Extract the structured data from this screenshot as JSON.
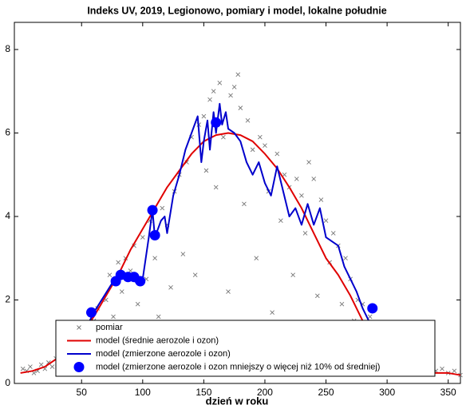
{
  "chart_data": {
    "type": "line",
    "title": "Indeks UV, 2019, Legionowo, pomiary i model, lokalne południe",
    "xlabel": "dzień w roku",
    "xlim": [
      -5,
      360
    ],
    "ylim": [
      0,
      8.65
    ],
    "xticks": [
      50,
      100,
      150,
      200,
      250,
      300,
      350
    ],
    "yticks": [
      0,
      2,
      4,
      6,
      8
    ],
    "legend": "lower center",
    "series": [
      {
        "name": "pomiar",
        "type": "scatter",
        "marker": "x",
        "color": "#777777",
        "x": [
          2,
          5,
          8,
          11,
          14,
          17,
          20,
          23,
          26,
          29,
          32,
          35,
          38,
          41,
          44,
          47,
          50,
          53,
          56,
          60,
          63,
          66,
          70,
          73,
          76,
          80,
          83,
          86,
          90,
          93,
          96,
          100,
          103,
          106,
          110,
          113,
          116,
          120,
          123,
          126,
          130,
          133,
          136,
          140,
          143,
          146,
          150,
          152,
          155,
          158,
          160,
          163,
          166,
          170,
          172,
          175,
          178,
          180,
          183,
          186,
          190,
          193,
          196,
          200,
          203,
          206,
          210,
          213,
          216,
          220,
          223,
          226,
          230,
          233,
          236,
          240,
          243,
          246,
          250,
          253,
          256,
          260,
          263,
          266,
          270,
          273,
          276,
          280,
          283,
          286,
          290,
          295,
          300,
          305,
          310,
          315,
          320,
          325,
          330,
          335,
          340,
          345,
          350,
          355,
          360
        ],
        "values": [
          0.35,
          0.3,
          0.4,
          0.25,
          0.3,
          0.45,
          0.35,
          0.5,
          0.4,
          0.6,
          0.55,
          0.7,
          0.5,
          0.9,
          0.8,
          1.1,
          0.7,
          1.3,
          1.0,
          1.5,
          1.8,
          1.2,
          2.0,
          2.6,
          1.6,
          2.9,
          2.2,
          3.0,
          2.7,
          3.3,
          1.9,
          3.5,
          2.5,
          3.9,
          3.0,
          1.6,
          4.2,
          3.8,
          2.3,
          4.6,
          5.0,
          3.1,
          5.3,
          5.9,
          2.6,
          6.2,
          6.4,
          5.1,
          6.8,
          7.0,
          4.7,
          7.2,
          5.9,
          2.2,
          6.9,
          7.1,
          7.4,
          6.6,
          4.3,
          6.3,
          5.6,
          3.0,
          5.9,
          5.7,
          4.6,
          1.7,
          5.5,
          3.9,
          5.0,
          4.7,
          2.6,
          4.9,
          4.5,
          3.6,
          5.3,
          4.9,
          2.1,
          4.4,
          3.9,
          2.9,
          3.6,
          3.3,
          1.9,
          3.0,
          2.5,
          1.5,
          2.0,
          1.9,
          1.0,
          1.6,
          1.2,
          0.9,
          0.8,
          0.6,
          0.5,
          0.55,
          0.45,
          0.4,
          0.35,
          0.5,
          0.3,
          0.35,
          0.25,
          0.3,
          0.2
        ]
      },
      {
        "name": "model (średnie aerozole i ozon)",
        "type": "line",
        "color": "#e00000",
        "x": [
          0,
          10,
          20,
          30,
          40,
          50,
          60,
          70,
          80,
          90,
          100,
          110,
          120,
          130,
          140,
          150,
          160,
          170,
          180,
          190,
          200,
          210,
          220,
          230,
          240,
          250,
          260,
          270,
          280,
          290,
          300,
          310,
          320,
          330,
          340,
          350,
          360
        ],
        "values": [
          0.25,
          0.3,
          0.4,
          0.6,
          0.9,
          1.2,
          1.6,
          2.1,
          2.6,
          3.2,
          3.7,
          4.2,
          4.7,
          5.1,
          5.5,
          5.8,
          5.95,
          6.0,
          5.95,
          5.8,
          5.5,
          5.15,
          4.7,
          4.2,
          3.6,
          3.0,
          2.6,
          2.1,
          1.5,
          0.9,
          0.6,
          0.45,
          0.35,
          0.3,
          0.25,
          0.25,
          0.2
        ]
      },
      {
        "name": "model (zmierzone aerozole i ozon)",
        "type": "line",
        "color": "#0000cc",
        "x": [
          55,
          60,
          75,
          80,
          85,
          90,
          95,
          100,
          105,
          108,
          110,
          115,
          118,
          120,
          125,
          130,
          135,
          140,
          145,
          148,
          150,
          153,
          155,
          158,
          160,
          163,
          165,
          168,
          170,
          175,
          180,
          185,
          190,
          195,
          200,
          205,
          210,
          215,
          220,
          225,
          230,
          235,
          240,
          245,
          250,
          255,
          260,
          265,
          270,
          275,
          280,
          285,
          290
        ],
        "values": [
          1.4,
          1.7,
          2.4,
          2.6,
          2.5,
          2.6,
          2.4,
          2.5,
          3.5,
          4.15,
          3.5,
          3.9,
          4.0,
          3.6,
          4.5,
          5.0,
          5.6,
          6.0,
          6.4,
          5.3,
          5.8,
          6.3,
          5.6,
          6.5,
          6.0,
          6.7,
          6.2,
          6.5,
          6.1,
          6.0,
          5.8,
          5.3,
          5.0,
          5.3,
          4.8,
          4.5,
          5.2,
          4.6,
          4.0,
          4.2,
          3.8,
          4.3,
          3.8,
          4.2,
          3.5,
          3.4,
          3.3,
          2.8,
          2.5,
          2.2,
          1.8,
          1.5,
          1.2
        ]
      },
      {
        "name": "model (zmierzone aerozole i ozon mniejszy o więcej niż 10% od średniej)",
        "type": "scatter",
        "marker": "dot",
        "color": "#0000ff",
        "x": [
          58,
          78,
          82,
          88,
          93,
          98,
          108,
          110,
          160,
          288
        ],
        "values": [
          1.7,
          2.45,
          2.6,
          2.55,
          2.55,
          2.45,
          4.15,
          3.55,
          6.25,
          1.8
        ]
      }
    ]
  }
}
